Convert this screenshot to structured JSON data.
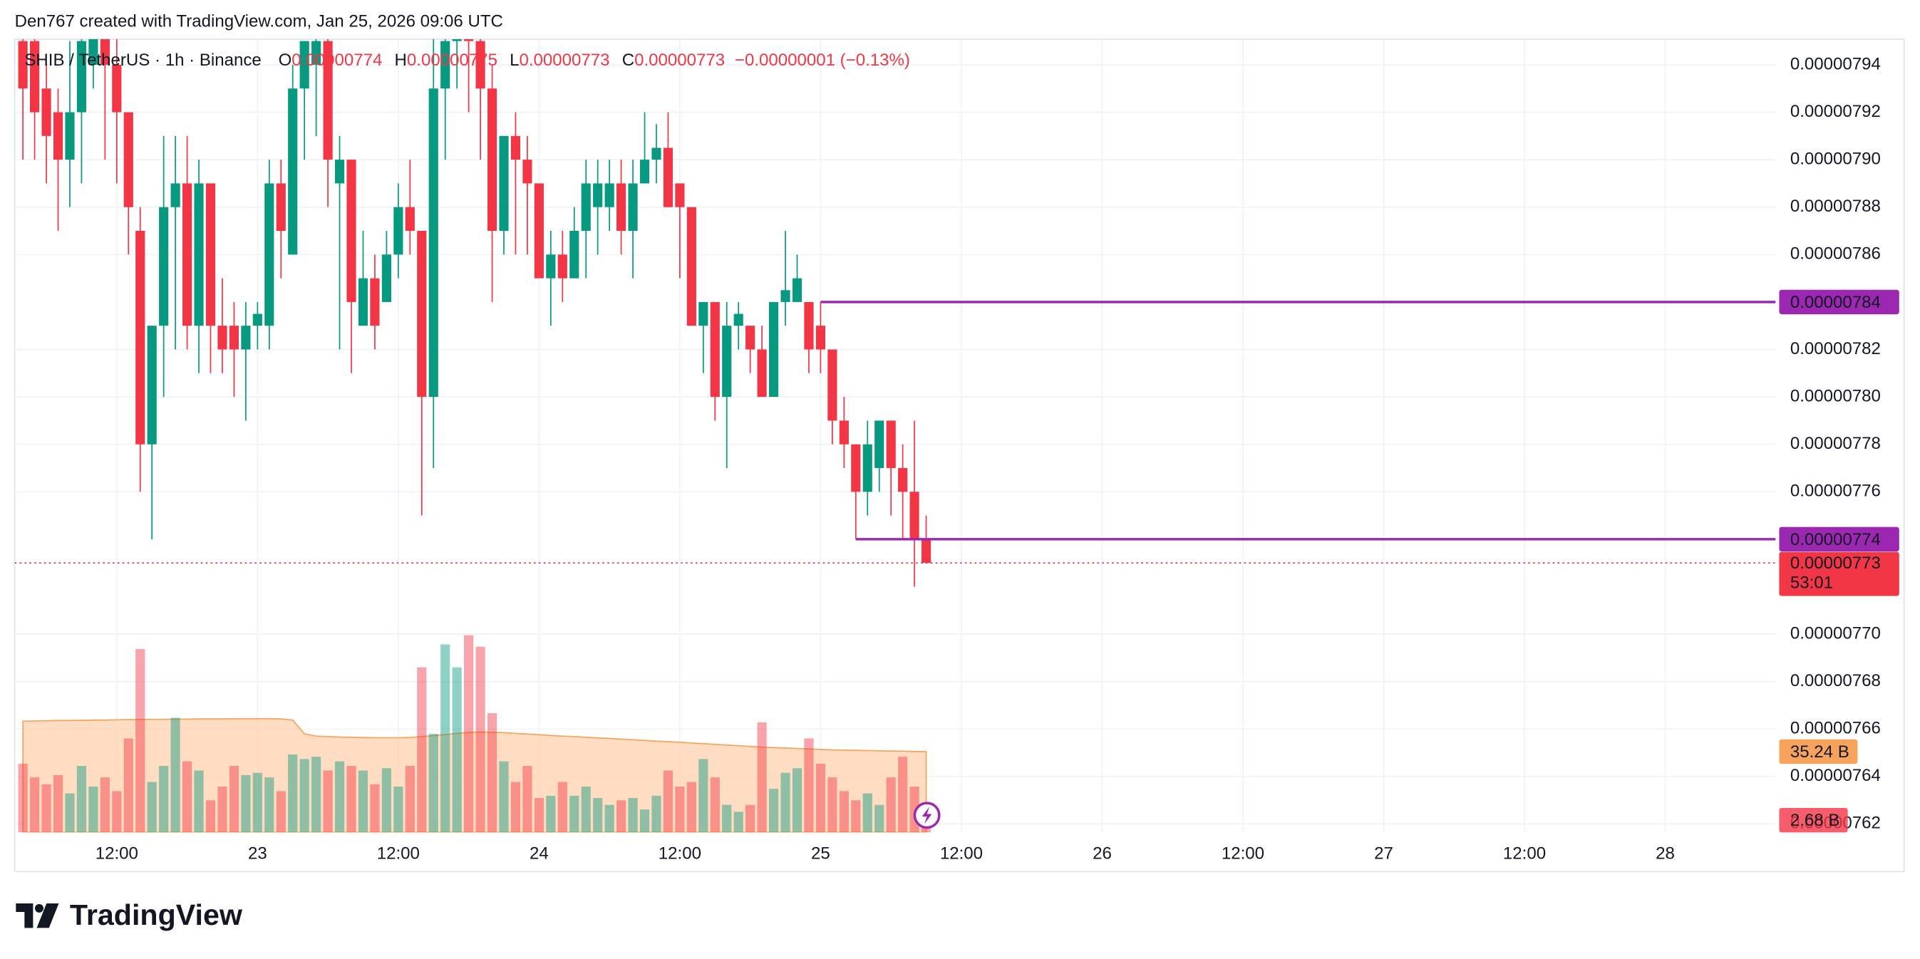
{
  "header": {
    "attribution": "Den767 created with TradingView.com, Jan 25, 2026 09:06 UTC",
    "symbol": "SHIB / TetherUS · 1h · Binance",
    "ohlc": [
      {
        "key": "O",
        "value": "0.00000774"
      },
      {
        "key": "H",
        "value": "0.00000775"
      },
      {
        "key": "L",
        "value": "0.00000773"
      },
      {
        "key": "C",
        "value": "0.00000773"
      }
    ],
    "change": "−0.00000001 (−0.13%)"
  },
  "chart_data": {
    "type": "candlestick",
    "x": [
      4,
      5,
      6,
      7,
      8,
      9,
      10,
      11,
      12,
      13,
      14,
      15,
      16,
      17,
      18,
      19,
      20,
      21,
      22,
      23,
      24,
      25,
      26,
      27,
      28,
      29,
      30,
      31,
      32,
      33,
      34,
      35,
      36,
      37,
      38,
      39,
      40,
      41,
      42,
      43,
      44,
      45,
      46,
      47,
      48,
      49,
      50,
      51,
      52,
      53,
      54,
      55,
      56,
      57,
      58,
      59,
      60,
      61,
      62,
      63,
      64,
      65,
      66,
      67,
      68,
      69,
      70,
      71,
      72,
      73,
      74,
      75,
      76,
      77,
      78,
      79,
      80,
      81
    ],
    "open": [
      7.95e-06,
      7.95e-06,
      7.93e-06,
      7.92e-06,
      7.9e-06,
      7.92e-06,
      7.94e-06,
      7.96e-06,
      7.94e-06,
      7.92e-06,
      7.87e-06,
      7.78e-06,
      7.83e-06,
      7.88e-06,
      7.89e-06,
      7.83e-06,
      7.89e-06,
      7.83e-06,
      7.83e-06,
      7.82e-06,
      7.83e-06,
      7.83e-06,
      7.89e-06,
      7.86e-06,
      7.93e-06,
      7.94e-06,
      7.95e-06,
      7.89e-06,
      7.9e-06,
      7.83e-06,
      7.85e-06,
      7.84e-06,
      7.86e-06,
      7.88e-06,
      7.87e-06,
      7.8e-06,
      7.93e-06,
      7.95e-06,
      7.96e-06,
      7.95e-06,
      7.93e-06,
      7.87e-06,
      7.91e-06,
      7.9e-06,
      7.89e-06,
      7.85e-06,
      7.86e-06,
      7.85e-06,
      7.87e-06,
      7.88e-06,
      7.88e-06,
      7.89e-06,
      7.87e-06,
      7.89e-06,
      7.9e-06,
      7.905e-06,
      7.89e-06,
      7.88e-06,
      7.83e-06,
      7.84e-06,
      7.8e-06,
      7.83e-06,
      7.83e-06,
      7.82e-06,
      7.8e-06,
      7.84e-06,
      7.84e-06,
      7.84e-06,
      7.83e-06,
      7.82e-06,
      7.79e-06,
      7.78e-06,
      7.76e-06,
      7.77e-06,
      7.79e-06,
      7.77e-06,
      7.76e-06,
      7.74e-06
    ],
    "high": [
      7.96e-06,
      7.96e-06,
      7.94e-06,
      7.93e-06,
      7.95e-06,
      7.96e-06,
      7.96e-06,
      7.96e-06,
      7.96e-06,
      7.92e-06,
      7.88e-06,
      7.83e-06,
      7.91e-06,
      7.91e-06,
      7.91e-06,
      7.9e-06,
      7.89e-06,
      7.85e-06,
      7.84e-06,
      7.84e-06,
      7.84e-06,
      7.9e-06,
      7.9e-06,
      7.94e-06,
      7.95e-06,
      7.96e-06,
      7.96e-06,
      7.91e-06,
      7.9e-06,
      7.87e-06,
      7.86e-06,
      7.87e-06,
      7.89e-06,
      7.9e-06,
      7.87e-06,
      7.96e-06,
      7.96e-06,
      7.96e-06,
      7.96e-06,
      7.96e-06,
      7.94e-06,
      7.91e-06,
      7.92e-06,
      7.91e-06,
      7.89e-06,
      7.87e-06,
      7.87e-06,
      7.88e-06,
      7.9e-06,
      7.9e-06,
      7.9e-06,
      7.9e-06,
      7.9e-06,
      7.92e-06,
      7.915e-06,
      7.92e-06,
      7.89e-06,
      7.88e-06,
      7.84e-06,
      7.84e-06,
      7.84e-06,
      7.84e-06,
      7.83e-06,
      7.83e-06,
      7.84e-06,
      7.87e-06,
      7.86e-06,
      7.84e-06,
      7.84e-06,
      7.82e-06,
      7.8e-06,
      7.78e-06,
      7.79e-06,
      7.79e-06,
      7.79e-06,
      7.78e-06,
      7.79e-06,
      7.75e-06
    ],
    "low": [
      7.9e-06,
      7.9e-06,
      7.89e-06,
      7.87e-06,
      7.88e-06,
      7.89e-06,
      7.93e-06,
      7.9e-06,
      7.89e-06,
      7.86e-06,
      7.76e-06,
      7.74e-06,
      7.8e-06,
      7.82e-06,
      7.82e-06,
      7.81e-06,
      7.81e-06,
      7.81e-06,
      7.8e-06,
      7.79e-06,
      7.82e-06,
      7.82e-06,
      7.85e-06,
      7.86e-06,
      7.9e-06,
      7.91e-06,
      7.88e-06,
      7.82e-06,
      7.81e-06,
      7.83e-06,
      7.82e-06,
      7.84e-06,
      7.85e-06,
      7.86e-06,
      7.75e-06,
      7.77e-06,
      7.9e-06,
      7.93e-06,
      7.92e-06,
      7.9e-06,
      7.84e-06,
      7.86e-06,
      7.86e-06,
      7.86e-06,
      7.85e-06,
      7.83e-06,
      7.84e-06,
      7.85e-06,
      7.85e-06,
      7.86e-06,
      7.87e-06,
      7.86e-06,
      7.85e-06,
      7.89e-06,
      7.89e-06,
      7.88e-06,
      7.85e-06,
      7.83e-06,
      7.81e-06,
      7.79e-06,
      7.77e-06,
      7.82e-06,
      7.81e-06,
      7.8e-06,
      7.8e-06,
      7.83e-06,
      7.84e-06,
      7.81e-06,
      7.81e-06,
      7.78e-06,
      7.77e-06,
      7.74e-06,
      7.75e-06,
      7.76e-06,
      7.75e-06,
      7.74e-06,
      7.72e-06,
      7.73e-06
    ],
    "close": [
      7.93e-06,
      7.92e-06,
      7.91e-06,
      7.9e-06,
      7.92e-06,
      7.95e-06,
      7.96e-06,
      7.94e-06,
      7.92e-06,
      7.88e-06,
      7.78e-06,
      7.83e-06,
      7.88e-06,
      7.89e-06,
      7.83e-06,
      7.89e-06,
      7.83e-06,
      7.82e-06,
      7.82e-06,
      7.83e-06,
      7.835e-06,
      7.89e-06,
      7.87e-06,
      7.93e-06,
      7.95e-06,
      7.95e-06,
      7.9e-06,
      7.9e-06,
      7.84e-06,
      7.85e-06,
      7.83e-06,
      7.86e-06,
      7.88e-06,
      7.87e-06,
      7.8e-06,
      7.93e-06,
      7.95e-06,
      7.96e-06,
      7.95e-06,
      7.93e-06,
      7.87e-06,
      7.91e-06,
      7.9e-06,
      7.89e-06,
      7.85e-06,
      7.86e-06,
      7.85e-06,
      7.87e-06,
      7.89e-06,
      7.89e-06,
      7.89e-06,
      7.87e-06,
      7.89e-06,
      7.9e-06,
      7.905e-06,
      7.88e-06,
      7.88e-06,
      7.83e-06,
      7.84e-06,
      7.8e-06,
      7.83e-06,
      7.835e-06,
      7.82e-06,
      7.8e-06,
      7.84e-06,
      7.845e-06,
      7.85e-06,
      7.82e-06,
      7.82e-06,
      7.79e-06,
      7.78e-06,
      7.76e-06,
      7.78e-06,
      7.79e-06,
      7.77e-06,
      7.76e-06,
      7.74e-06,
      7.73e-06
    ],
    "up_color": "#089981",
    "down_color": "#f23645",
    "xlim": [
      3.3,
      153.4
    ],
    "xticks": [
      {
        "value": 12,
        "label": "12:00"
      },
      {
        "value": 24,
        "label": "23"
      },
      {
        "value": 36,
        "label": "12:00"
      },
      {
        "value": 48,
        "label": "24"
      },
      {
        "value": 60,
        "label": "12:00"
      },
      {
        "value": 72,
        "label": "25"
      },
      {
        "value": 84,
        "label": "12:00"
      },
      {
        "value": 96,
        "label": "26"
      },
      {
        "value": 108,
        "label": "12:00"
      },
      {
        "value": 120,
        "label": "27"
      },
      {
        "value": 132,
        "label": "12:00"
      },
      {
        "value": 144,
        "label": "28"
      }
    ],
    "ylim": [
      7.6164e-06,
      7.9508e-06
    ],
    "yticks": [
      {
        "value": 7.94e-06,
        "label": "0.00000794"
      },
      {
        "value": 7.92e-06,
        "label": "0.00000792"
      },
      {
        "value": 7.9e-06,
        "label": "0.00000790"
      },
      {
        "value": 7.88e-06,
        "label": "0.00000788"
      },
      {
        "value": 7.86e-06,
        "label": "0.00000786"
      },
      {
        "value": 7.82e-06,
        "label": "0.00000782"
      },
      {
        "value": 7.8e-06,
        "label": "0.00000780"
      },
      {
        "value": 7.78e-06,
        "label": "0.00000778"
      },
      {
        "value": 7.76e-06,
        "label": "0.00000776"
      },
      {
        "value": 7.7e-06,
        "label": "0.00000770"
      },
      {
        "value": 7.68e-06,
        "label": "0.00000768"
      },
      {
        "value": 7.66e-06,
        "label": "0.00000766"
      },
      {
        "value": 7.64e-06,
        "label": "0.00000764"
      },
      {
        "value": 7.62e-06,
        "label": "0.00000762"
      }
    ],
    "grid": true,
    "hlines": [
      {
        "x": 72,
        "value": 7.84e-06,
        "label": "0.00000784",
        "color": "#9c27b0"
      },
      {
        "x": 75,
        "value": 7.74e-06,
        "label": "0.00000774",
        "color": "#9c27b0"
      }
    ],
    "last_price": {
      "value": 7.73e-06,
      "label": "0.00000773",
      "countdown": "53:01"
    },
    "volume": {
      "ylim": [
        0,
        100
      ],
      "values": [
        30,
        24,
        21,
        25,
        17,
        29,
        20,
        24,
        18,
        41,
        80,
        22,
        29,
        50,
        31,
        27,
        14,
        20,
        29,
        25,
        26,
        24,
        18,
        34,
        32,
        33,
        27,
        31,
        29,
        27,
        21,
        28,
        20,
        29,
        72,
        43,
        82,
        72,
        86,
        81,
        52,
        31,
        22,
        29,
        15,
        16,
        22,
        16,
        20,
        15,
        12,
        14,
        15,
        10,
        16,
        27,
        20,
        22,
        32,
        24,
        12,
        9,
        12,
        48,
        19,
        26,
        28,
        41,
        30,
        24,
        18,
        14,
        17,
        12,
        24,
        33,
        20,
        2.68
      ],
      "last_label": "2.68 B",
      "ma": [
        48.5,
        48.6,
        48.7,
        48.8,
        48.8,
        48.9,
        49,
        49,
        49.1,
        49.2,
        49.2,
        49.3,
        49.3,
        49.4,
        49.4,
        49.5,
        49.5,
        49.5,
        49.6,
        49.6,
        49.6,
        49.6,
        49.5,
        49,
        43,
        42,
        41.8,
        41.6,
        41.5,
        41.4,
        41.3,
        41.3,
        41.3,
        41.4,
        41.8,
        42.2,
        42.7,
        43.2,
        43.6,
        43.8,
        43.7,
        43.5,
        43.2,
        42.9,
        42.6,
        42.3,
        42,
        41.8,
        41.5,
        41.2,
        41,
        40.7,
        40.4,
        40.1,
        39.8,
        39.6,
        39.3,
        39,
        38.7,
        38.4,
        38.1,
        37.8,
        37.5,
        37.2,
        37,
        36.8,
        36.6,
        36.4,
        36.2,
        36,
        35.9,
        35.8,
        35.7,
        35.6,
        35.5,
        35.4,
        35.3,
        35.24
      ],
      "ma_label": "35.24 B",
      "ma_color": "#f7a35c",
      "ma_fill": "#ffd2ad"
    }
  },
  "footer": {
    "brand": "TradingView"
  }
}
